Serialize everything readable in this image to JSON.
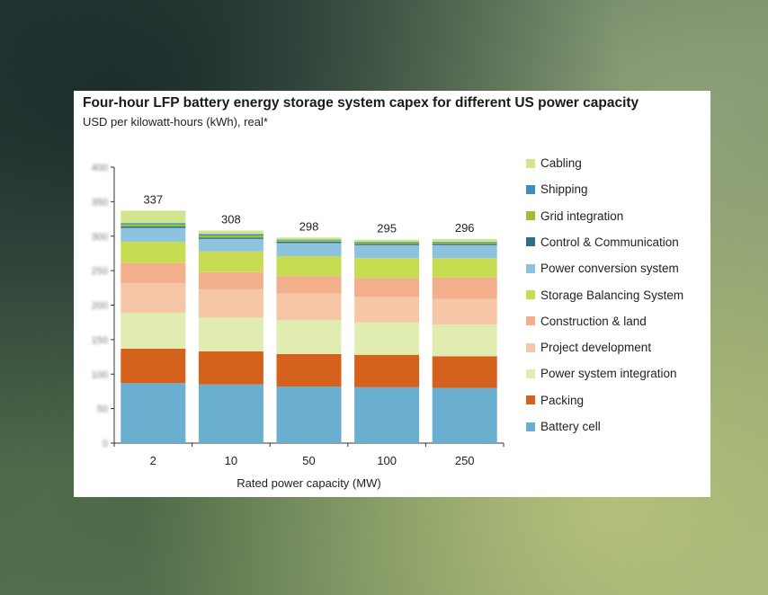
{
  "chart_data": {
    "type": "bar",
    "stacked": true,
    "title": "Four-hour LFP battery energy storage system capex for different US power capacity",
    "subtitle": "USD per kilowatt-hours (kWh), real*",
    "xlabel": "Rated power capacity (MW)",
    "ylabel": "",
    "ylim": [
      0,
      400
    ],
    "yticks": [
      0,
      50,
      100,
      150,
      200,
      250,
      300,
      350,
      400
    ],
    "y_tick_labels_blurred": true,
    "grid": false,
    "legend_position": "right",
    "categories": [
      "2",
      "10",
      "50",
      "100",
      "250"
    ],
    "totals": [
      337,
      308,
      298,
      295,
      296
    ],
    "series": [
      {
        "name": "Battery cell",
        "color": "#6aaed0",
        "values": [
          87,
          85,
          82,
          81,
          80
        ]
      },
      {
        "name": "Packing",
        "color": "#d4611c",
        "values": [
          50,
          48,
          47,
          47,
          46
        ]
      },
      {
        "name": "Power system integration",
        "color": "#e0ecb0",
        "values": [
          52,
          49,
          49,
          47,
          46
        ]
      },
      {
        "name": "Project development",
        "color": "#f6c7a7",
        "values": [
          43,
          41,
          39,
          37,
          37
        ]
      },
      {
        "name": "Construction & land",
        "color": "#f3ae8b",
        "values": [
          29,
          25,
          25,
          27,
          31
        ]
      },
      {
        "name": "Storage Balancing System",
        "color": "#c8dc52",
        "values": [
          31,
          30,
          29,
          29,
          28
        ]
      },
      {
        "name": "Power conversion system",
        "color": "#8ec3df",
        "values": [
          20,
          18,
          19,
          19,
          19
        ]
      },
      {
        "name": "Control & Communication",
        "color": "#2e6f86",
        "values": [
          2,
          2,
          2,
          2,
          2
        ]
      },
      {
        "name": "Grid integration",
        "color": "#9bbe32",
        "values": [
          3,
          3,
          2,
          2,
          2
        ]
      },
      {
        "name": "Shipping",
        "color": "#3a8fc0",
        "values": [
          2,
          2,
          1,
          1,
          1
        ]
      },
      {
        "name": "Cabling",
        "color": "#cfe58e",
        "values": [
          18,
          5,
          3,
          3,
          4
        ]
      }
    ]
  }
}
